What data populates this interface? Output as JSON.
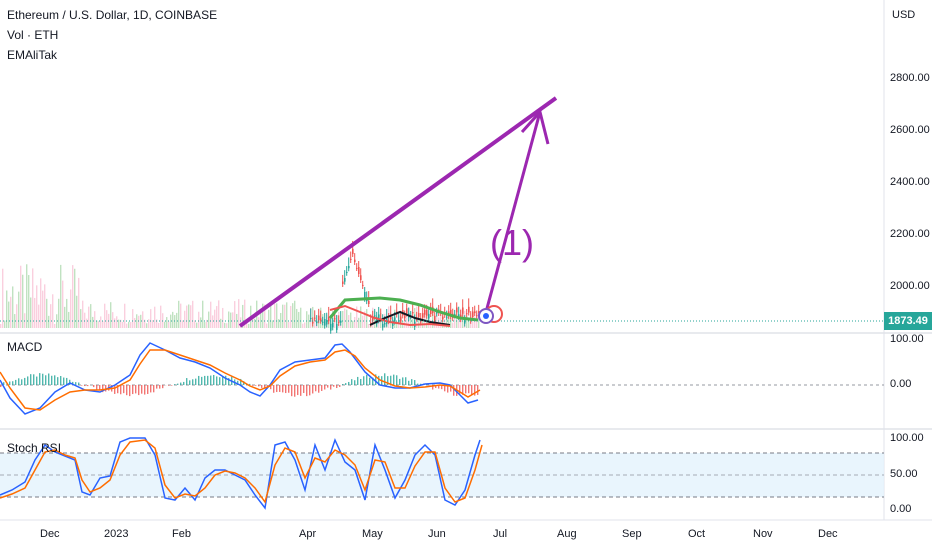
{
  "legend": {
    "symbol": "Ethereum / U.S. Dollar, 1D, COINBASE",
    "volume": "Vol · ETH",
    "indicator": "EMAliTak"
  },
  "price_axis": {
    "currency": "USD",
    "labels": [
      "2800.00",
      "2600.00",
      "2400.00",
      "2200.00",
      "2000.00"
    ],
    "current_price": "1873.49",
    "current_color": "#26a69a"
  },
  "annotation": {
    "wave_label": "(1)",
    "drawing_color": "#9c27b0"
  },
  "macd": {
    "title": "MACD",
    "labels": [
      "100.00",
      "0.00"
    ]
  },
  "stoch_rsi": {
    "title": "Stoch RSI",
    "labels": [
      "100.00",
      "50.00",
      "0.00"
    ]
  },
  "time_axis": [
    "Dec",
    "2023",
    "Feb",
    "Apr",
    "May",
    "Jun",
    "Jul",
    "Aug",
    "Sep",
    "Oct",
    "Nov",
    "Dec"
  ],
  "colors": {
    "bull": "#26a69a",
    "bear": "#ef5350",
    "macd_line": "#2962ff",
    "signal_line": "#ff6d00",
    "rsi_fill": "#e3f2fd"
  }
}
